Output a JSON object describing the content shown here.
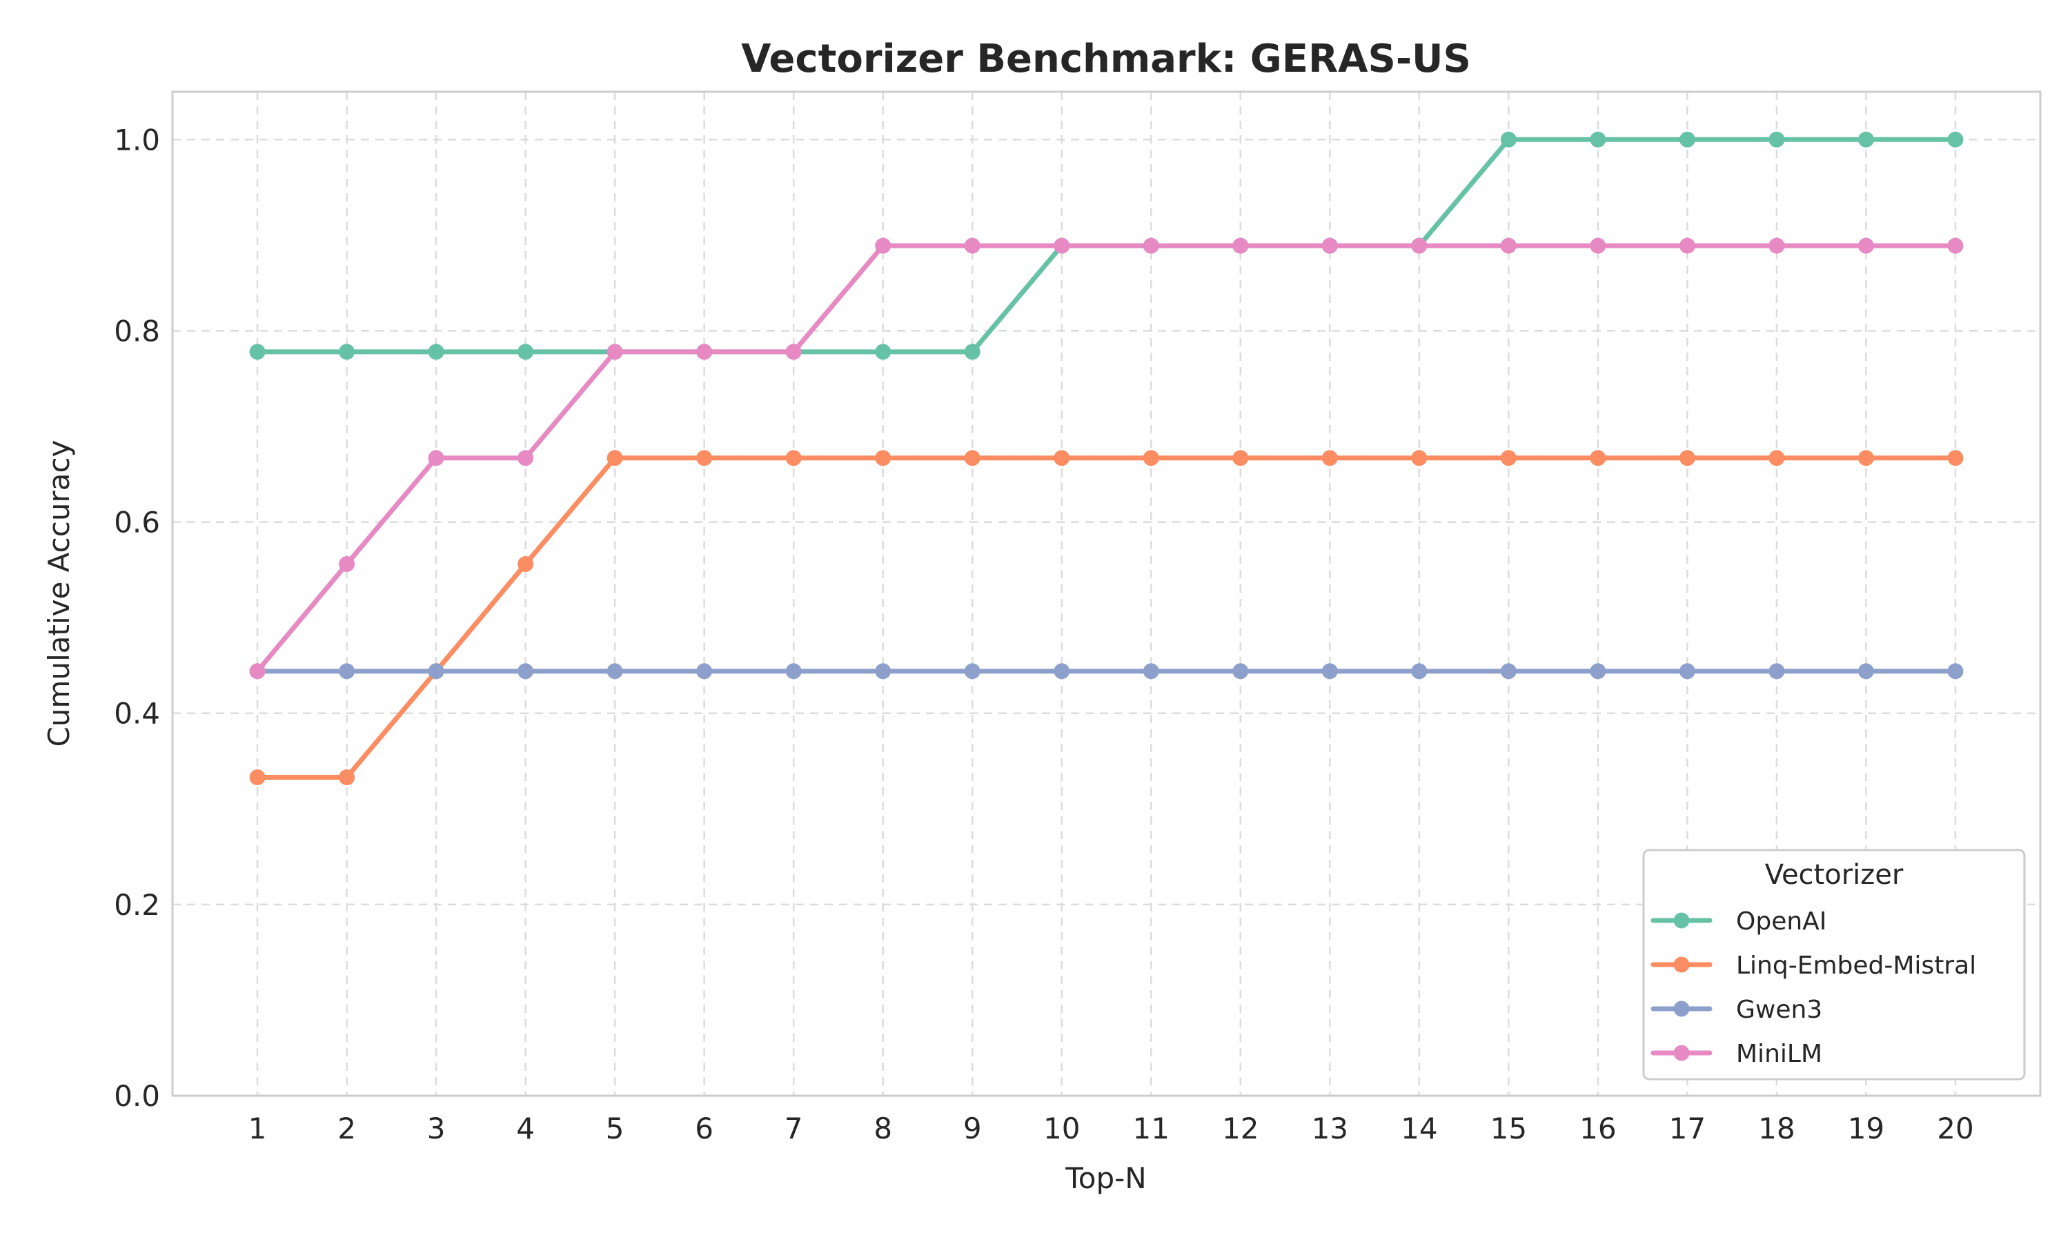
{
  "chart_data": {
    "type": "line",
    "title": "Vectorizer Benchmark: GERAS-US",
    "xlabel": "Top-N",
    "ylabel": "Cumulative Accuracy",
    "x": [
      1,
      2,
      3,
      4,
      5,
      6,
      7,
      8,
      9,
      10,
      11,
      12,
      13,
      14,
      15,
      16,
      17,
      18,
      19,
      20
    ],
    "x_tick_labels": [
      "1",
      "2",
      "3",
      "4",
      "5",
      "6",
      "7",
      "8",
      "9",
      "10",
      "11",
      "12",
      "13",
      "14",
      "15",
      "16",
      "17",
      "18",
      "19",
      "20"
    ],
    "y_ticks": [
      0.0,
      0.2,
      0.4,
      0.6,
      0.8,
      1.0
    ],
    "y_tick_labels": [
      "0.0",
      "0.2",
      "0.4",
      "0.6",
      "0.8",
      "1.0"
    ],
    "xlim": [
      0.05,
      20.95
    ],
    "ylim": [
      0.0,
      1.05
    ],
    "grid": true,
    "legend": {
      "title": "Vectorizer",
      "placement": "lower-right"
    },
    "series": [
      {
        "name": "OpenAI",
        "color": "#66c2a5",
        "values": [
          0.778,
          0.778,
          0.778,
          0.778,
          0.778,
          0.778,
          0.778,
          0.778,
          0.778,
          0.889,
          0.889,
          0.889,
          0.889,
          0.889,
          1.0,
          1.0,
          1.0,
          1.0,
          1.0,
          1.0
        ]
      },
      {
        "name": "Linq-Embed-Mistral",
        "color": "#fc8d62",
        "values": [
          0.333,
          0.333,
          0.444,
          0.556,
          0.667,
          0.667,
          0.667,
          0.667,
          0.667,
          0.667,
          0.667,
          0.667,
          0.667,
          0.667,
          0.667,
          0.667,
          0.667,
          0.667,
          0.667,
          0.667
        ]
      },
      {
        "name": "Gwen3",
        "color": "#8da0cb",
        "values": [
          0.444,
          0.444,
          0.444,
          0.444,
          0.444,
          0.444,
          0.444,
          0.444,
          0.444,
          0.444,
          0.444,
          0.444,
          0.444,
          0.444,
          0.444,
          0.444,
          0.444,
          0.444,
          0.444,
          0.444
        ]
      },
      {
        "name": "MiniLM",
        "color": "#e78ac3",
        "values": [
          0.444,
          0.556,
          0.667,
          0.667,
          0.778,
          0.778,
          0.778,
          0.889,
          0.889,
          0.889,
          0.889,
          0.889,
          0.889,
          0.889,
          0.889,
          0.889,
          0.889,
          0.889,
          0.889,
          0.889
        ]
      }
    ]
  }
}
